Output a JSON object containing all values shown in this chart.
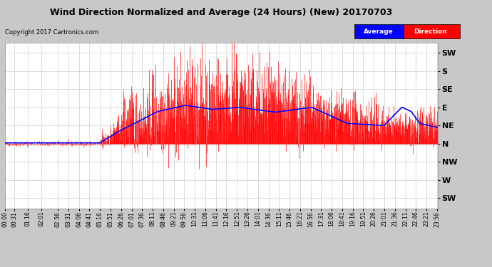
{
  "title": "Wind Direction Normalized and Average (24 Hours) (New) 20170703",
  "copyright": "Copyright 2017 Cartronics.com",
  "yticks_labels": [
    "SW",
    "S",
    "SE",
    "E",
    "NE",
    "N",
    "NW",
    "W",
    "SW"
  ],
  "yticks_values": [
    225,
    180,
    135,
    90,
    45,
    0,
    -45,
    -90,
    -135
  ],
  "ylim": [
    -160,
    250
  ],
  "background_color": "#c8c8c8",
  "plot_bg_color": "#ffffff",
  "grid_color": "#aaaaaa",
  "title_color": "#000000",
  "avg_line_color": "#0000ff",
  "dir_line_color": "#ff0000",
  "copyright_color": "#000000",
  "xtick_labels": [
    "00:00",
    "00:31",
    "01:16",
    "02:01",
    "02:56",
    "03:31",
    "04:06",
    "04:41",
    "05:16",
    "05:51",
    "06:26",
    "07:01",
    "07:36",
    "08:11",
    "08:46",
    "09:21",
    "09:56",
    "10:31",
    "11:06",
    "11:41",
    "12:16",
    "12:51",
    "13:26",
    "14:01",
    "14:36",
    "15:11",
    "15:46",
    "16:21",
    "16:56",
    "17:31",
    "18:06",
    "18:41",
    "19:16",
    "19:51",
    "20:26",
    "21:01",
    "21:36",
    "22:11",
    "22:46",
    "23:21",
    "23:56"
  ]
}
